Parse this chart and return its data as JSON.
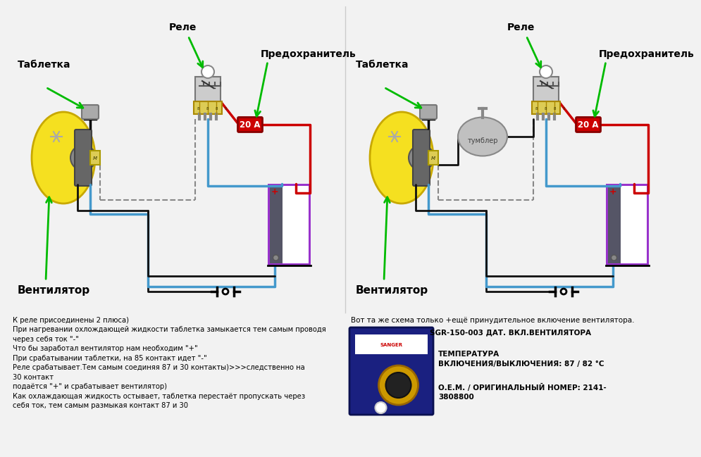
{
  "bg_color": "#f2f2f2",
  "left_labels": {
    "tabletka": "Таблетка",
    "rele": "Реле",
    "predohranitel": "Предохранитель",
    "ventilyator": "Вентилятор"
  },
  "right_labels": {
    "tabletka": "Таблетка",
    "rele": "Реле",
    "predohranitel": "Предохранитель",
    "ventilyator": "Вентилятор",
    "tumbler": "тумблер"
  },
  "bottom_left_text": [
    "К реле присоединены 2 плюса)",
    "При нагревании охлождающей жидкости таблетка замыкается тем самым проводя",
    "через себя ток \"-\"",
    "Что бы заработал вентилятор нам необходим \"+\"",
    "При срабатывании таблетки, на 85 контакт идет \"-\"",
    "Реле срабатывает.Тем самым соединяя 87 и 30 контакты)>>>следственно на",
    "30 контакт",
    "подаётся \"+\" и срабатывает вентилятор)",
    "Как охлаждающая жидкость остывает, таблетка перестаёт пропускать через",
    "себя ток, тем самым размыкая контакт 87 и 30"
  ],
  "bottom_right_line1": "Вот та же схема только +ещё принудительное включение вентилятора.",
  "bottom_right_line2": "SGR-150-003 ДАТ. ВКЛ.ВЕНТИЛЯТОРА",
  "bottom_right_line3a": "ТЕМПЕРАТУРА",
  "bottom_right_line3b": "ВКЛЮЧЕНИЯ/ВЫКЛЮЧЕНИЯ: 87 / 82 °С",
  "bottom_right_line4a": "О.Е.М. / ОРИГИНАЛЬНЫЙ НОМЕР: 2141-",
  "bottom_right_line4b": "3808800",
  "fuse_label": "20 А",
  "wire_red": "#cc0000",
  "wire_blue": "#4499cc",
  "wire_black": "#111111",
  "wire_gray_dashed": "#888888",
  "arrow_green": "#00bb00",
  "fuse_bg": "#cc0000",
  "battery_border": "#9933cc",
  "fan_yellow": "#f5e020",
  "tumbler_gray": "#aaaaaa",
  "relay_yellow": "#ddcc55",
  "relay_body": "#cccccc",
  "battery_body": "#e0e0e8",
  "battery_dark": "#555566"
}
